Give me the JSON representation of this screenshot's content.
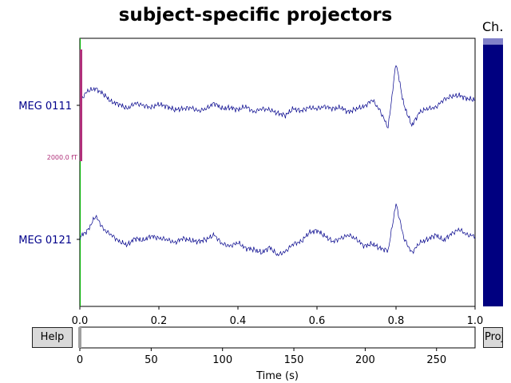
{
  "window": {
    "title": "subject-specific projectors",
    "channel_bar_label": "Ch.",
    "help_button": "Help",
    "proj_button": "Proj"
  },
  "colors": {
    "trace": "#00008b",
    "channel_label": "#00008b",
    "scalebar": "#b0307a",
    "event_line": "#00b000",
    "channel_scrollbar": "#000080",
    "channel_scroll_thumb": "#8080c8",
    "time_scroll_thumb": "#a0a0a0"
  },
  "channels": [
    {
      "name": "MEG 0111"
    },
    {
      "name": "MEG 0121"
    }
  ],
  "scalebar": {
    "label": "2000.0 fT"
  },
  "chart_data": {
    "type": "line",
    "title": "subject-specific projectors",
    "xlabel": "",
    "ylabel": "",
    "xlim": [
      0.0,
      1.0
    ],
    "xticks": [
      "0.0",
      "0.2",
      "0.4",
      "0.6",
      "0.8",
      "1.0"
    ],
    "yticks": [
      "MEG 0111",
      "MEG 0121"
    ],
    "series": [
      {
        "name": "MEG 0111",
        "x": [
          0.0,
          0.02,
          0.04,
          0.06,
          0.08,
          0.1,
          0.12,
          0.14,
          0.16,
          0.18,
          0.2,
          0.22,
          0.24,
          0.26,
          0.28,
          0.3,
          0.32,
          0.34,
          0.36,
          0.38,
          0.4,
          0.42,
          0.44,
          0.46,
          0.48,
          0.5,
          0.52,
          0.54,
          0.56,
          0.58,
          0.6,
          0.62,
          0.64,
          0.66,
          0.68,
          0.7,
          0.72,
          0.74,
          0.76,
          0.78,
          0.8,
          0.82,
          0.84,
          0.86,
          0.88,
          0.9,
          0.92,
          0.94,
          0.96,
          0.98,
          1.0
        ],
        "y": [
          0.4,
          1.3,
          1.5,
          1.0,
          0.3,
          0.1,
          -0.3,
          0.2,
          0.0,
          -0.2,
          0.1,
          -0.1,
          -0.4,
          -0.3,
          -0.2,
          -0.5,
          -0.3,
          0.2,
          -0.3,
          -0.2,
          -0.4,
          -0.1,
          -0.6,
          -0.3,
          -0.4,
          -0.7,
          -0.9,
          -0.3,
          -0.5,
          -0.2,
          -0.3,
          -0.1,
          -0.3,
          -0.2,
          -0.6,
          -0.3,
          -0.1,
          0.5,
          -0.5,
          -2.0,
          3.8,
          0.0,
          -1.8,
          -0.6,
          -0.3,
          -0.2,
          0.5,
          0.8,
          0.9,
          0.6,
          0.5
        ]
      },
      {
        "name": "MEG 0121",
        "x": [
          0.0,
          0.02,
          0.04,
          0.06,
          0.08,
          0.1,
          0.12,
          0.14,
          0.16,
          0.18,
          0.2,
          0.22,
          0.24,
          0.26,
          0.28,
          0.3,
          0.32,
          0.34,
          0.36,
          0.38,
          0.4,
          0.42,
          0.44,
          0.46,
          0.48,
          0.5,
          0.52,
          0.54,
          0.56,
          0.58,
          0.6,
          0.62,
          0.64,
          0.66,
          0.68,
          0.7,
          0.72,
          0.74,
          0.76,
          0.78,
          0.8,
          0.82,
          0.84,
          0.86,
          0.88,
          0.9,
          0.92,
          0.94,
          0.96,
          0.98,
          1.0
        ],
        "y": [
          0.2,
          0.8,
          2.1,
          0.9,
          0.4,
          -0.2,
          -0.5,
          0.1,
          -0.1,
          0.3,
          0.1,
          0.0,
          -0.3,
          0.1,
          -0.1,
          -0.2,
          0.0,
          0.4,
          -0.4,
          -0.6,
          -0.3,
          -0.8,
          -0.9,
          -1.2,
          -0.7,
          -1.4,
          -1.1,
          -0.4,
          -0.2,
          0.6,
          0.8,
          0.3,
          -0.2,
          0.1,
          0.4,
          0.0,
          -0.6,
          -0.4,
          -0.8,
          -1.0,
          3.2,
          0.1,
          -1.2,
          -0.3,
          0.0,
          0.4,
          -0.1,
          0.5,
          0.9,
          0.4,
          0.3
        ]
      }
    ],
    "time_axis": {
      "xlabel": "Time (s)",
      "xticks": [
        "0",
        "50",
        "100",
        "150",
        "200",
        "250"
      ],
      "xlim": [
        0,
        277
      ],
      "view_start": 0,
      "view_length": 1.0
    }
  }
}
